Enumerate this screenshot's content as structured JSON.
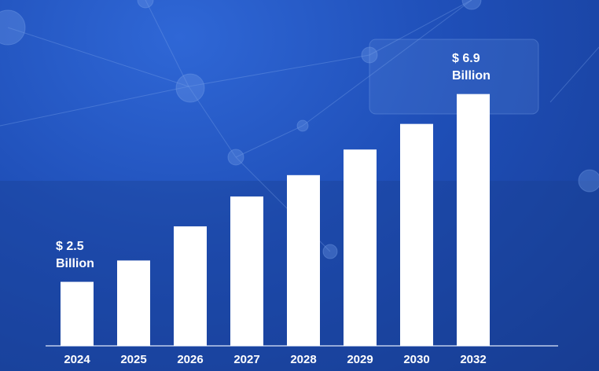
{
  "chart_data": {
    "type": "bar",
    "categories": [
      "2024",
      "2025",
      "2026",
      "2027",
      "2028",
      "2029",
      "2030",
      "2032"
    ],
    "values": [
      2.5,
      3.0,
      3.8,
      4.5,
      5.0,
      5.6,
      6.2,
      6.9
    ],
    "value_labels": [
      "$ 2.5 Billion",
      null,
      null,
      null,
      null,
      null,
      null,
      "$ 6.9 Billion"
    ],
    "color": "#ffffff",
    "ylim": [
      1,
      7.4
    ]
  }
}
